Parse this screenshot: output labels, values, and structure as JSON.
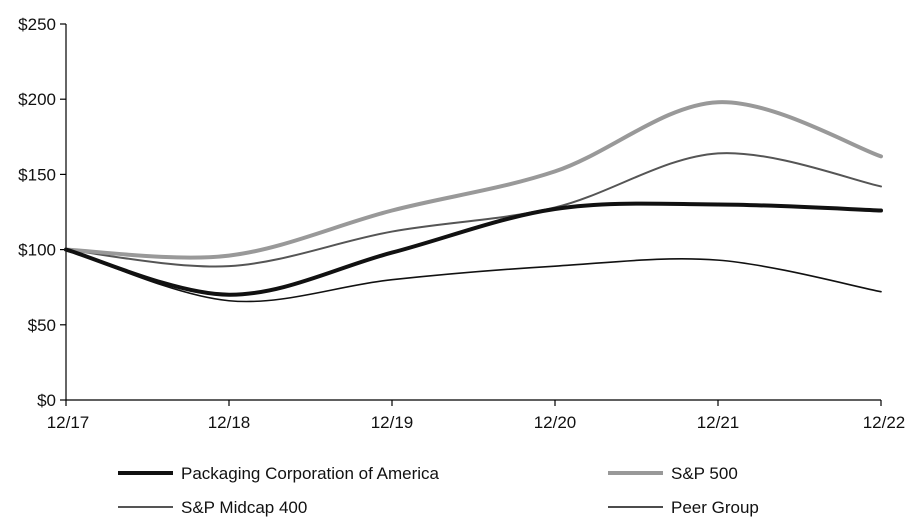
{
  "chart_data": {
    "type": "line",
    "title": "",
    "xlabel": "",
    "ylabel": "",
    "categories": [
      "12/17",
      "12/18",
      "12/19",
      "12/20",
      "12/21",
      "12/22"
    ],
    "ylim": [
      0,
      250
    ],
    "y_ticks": [
      0,
      50,
      100,
      150,
      200,
      250
    ],
    "y_tick_labels": [
      "$0",
      "$50",
      "$100",
      "$150",
      "$200",
      "$250"
    ],
    "grid": false,
    "legend_position": "bottom",
    "series": [
      {
        "name": "S&P Midcap 400",
        "values": [
          100,
          89,
          112,
          128,
          164,
          142
        ],
        "color": "#555555"
      },
      {
        "name": "Peer Group",
        "values": [
          100,
          66,
          80,
          89,
          93,
          72
        ],
        "color": "#111111"
      },
      {
        "name": "S&P 500",
        "values": [
          100,
          96,
          126,
          152,
          198,
          162
        ],
        "color": "#999999"
      },
      {
        "name": "Packaging Corporation of America",
        "values": [
          100,
          70,
          98,
          127,
          130,
          126
        ],
        "color": "#111111"
      }
    ]
  }
}
